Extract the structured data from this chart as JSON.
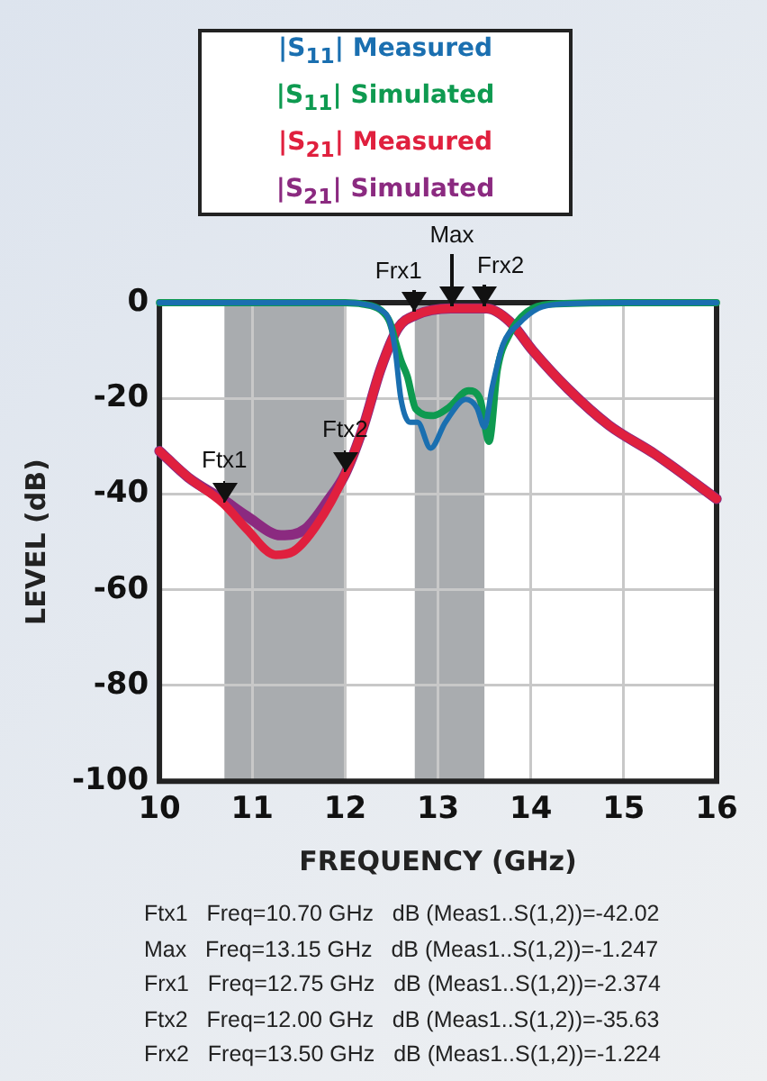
{
  "chart_data": {
    "type": "line",
    "xlabel": "FREQUENCY (GHz)",
    "ylabel": "LEVEL (dB)",
    "xlim": [
      10,
      16
    ],
    "xticks": [
      10,
      11,
      12,
      13,
      14,
      15,
      16
    ],
    "ylim": [
      -100,
      0
    ],
    "yticks": [
      -100,
      -80,
      -60,
      -40,
      -20,
      0
    ],
    "grid": true,
    "legend": "top",
    "marker": "none",
    "line_style": "solid",
    "series": [
      {
        "name": "|S$_{11}$| Measured",
        "color": "#1a6fb0",
        "x": [
          10,
          11,
          12,
          12.19,
          12.38,
          12.48,
          12.54,
          12.6,
          12.7,
          12.78,
          12.92,
          13.08,
          13.3,
          13.42,
          13.5,
          13.58,
          13.7,
          13.86,
          14.08,
          14.33,
          15,
          16
        ],
        "values": [
          0,
          0,
          0,
          -0.3,
          -1.5,
          -4,
          -10,
          -20,
          -25,
          -25,
          -30.4,
          -25,
          -20.2,
          -22,
          -26,
          -18,
          -8.7,
          -4.6,
          -1.2,
          -0.3,
          0,
          0
        ]
      },
      {
        "name": "|S$_{11}$| Simulated",
        "color": "#0e9a50",
        "x": [
          10,
          11,
          12,
          12.19,
          12.38,
          12.48,
          12.54,
          12.6,
          12.67,
          12.76,
          12.95,
          13.11,
          13.33,
          13.45,
          13.55,
          13.64,
          13.77,
          13.96,
          14.21,
          15,
          16
        ],
        "values": [
          0,
          0,
          0,
          -0.3,
          -1.5,
          -4,
          -8,
          -12,
          -15.4,
          -22.2,
          -23.6,
          -22,
          -18.4,
          -20,
          -29,
          -14,
          -6.6,
          -1.9,
          -0.3,
          0,
          0
        ]
      },
      {
        "name": "|S$_{21}$| Measured",
        "color": "#e0203e",
        "x": [
          10,
          10.31,
          10.69,
          10.94,
          11.25,
          11.44,
          11.69,
          12,
          12.19,
          12.38,
          12.57,
          12.76,
          13.14,
          13.52,
          13.77,
          14.02,
          14.4,
          14.84,
          15.34,
          16
        ],
        "values": [
          -31,
          -36.5,
          -42,
          -47.3,
          -52.7,
          -52,
          -46.6,
          -35.8,
          -26.3,
          -14,
          -5.3,
          -2.6,
          -1.2,
          -1.2,
          -3.9,
          -10,
          -18,
          -25.6,
          -31.7,
          -41
        ]
      },
      {
        "name": "|S$_{21}$| Simulated",
        "color": "#8b2a80",
        "x": [
          10,
          10.31,
          10.69,
          10.94,
          11.31,
          11.57,
          11.82,
          12,
          12.19,
          12.38,
          12.57,
          12.76,
          13.14,
          13.52,
          13.77,
          14.02,
          14.4,
          14.84,
          15.34,
          16
        ],
        "values": [
          -31,
          -36.5,
          -41.2,
          -44.6,
          -48.6,
          -47.3,
          -41.2,
          -35.8,
          -26.3,
          -14,
          -5.3,
          -2.6,
          -1.2,
          -1.2,
          -3.9,
          -10,
          -18,
          -25.6,
          -31.7,
          -41
        ]
      }
    ],
    "bands": [
      {
        "axis": "x",
        "from": 10.7,
        "to": 12,
        "color": "#a9acaf"
      },
      {
        "axis": "x",
        "from": 12.75,
        "to": 13.5,
        "color": "#a9acaf"
      }
    ],
    "annotations": [
      {
        "text": "Ftx1",
        "x": 10.7,
        "y": -42.02
      },
      {
        "text": "Ftx2",
        "x": 12,
        "y": -35.63
      },
      {
        "text": "Frx1",
        "x": 12.75,
        "y": -2.374
      },
      {
        "text": "Max",
        "x": 13.15,
        "y": -1.247
      },
      {
        "text": "Frx2",
        "x": 13.5,
        "y": -1.224
      },
      "Ftx1   Freq=10.70 GHz   dB (Meas1..S(1,2))=-42.02",
      "Max   Freq=13.15 GHz   dB (Meas1..S(1,2))=-1.247",
      "Frx1   Freq=12.75 GHz   dB (Meas1..S(1,2))=-2.374",
      "Ftx2   Freq=12.00 GHz   dB (Meas1..S(1,2))=-35.63",
      "Frx2   Freq=13.50 GHz   dB (Meas1..S(1,2))=-1.224"
    ]
  }
}
